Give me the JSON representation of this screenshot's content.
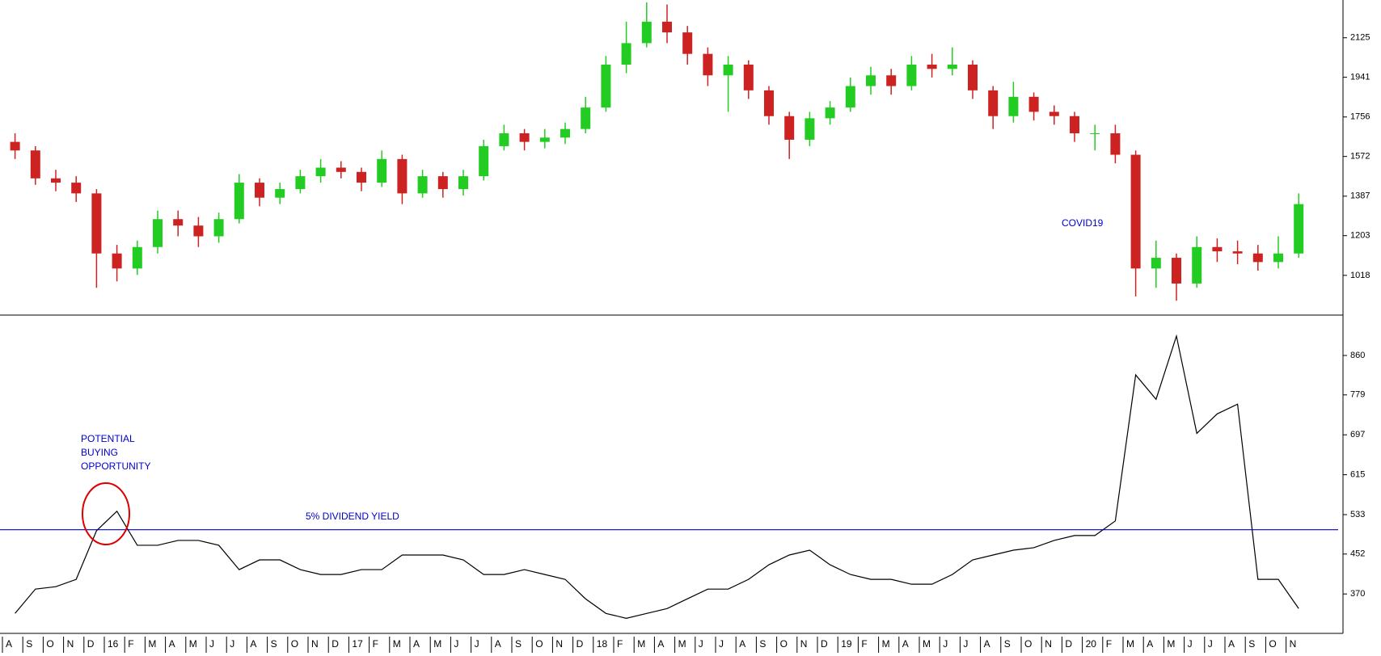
{
  "chart_data": [
    {
      "type": "candlestick",
      "categories": [
        "A",
        "S",
        "O",
        "N",
        "D",
        "16",
        "F",
        "M",
        "A",
        "M",
        "J",
        "J",
        "A",
        "S",
        "O",
        "N",
        "D",
        "17",
        "F",
        "M",
        "A",
        "M",
        "J",
        "J",
        "A",
        "S",
        "O",
        "N",
        "D",
        "18",
        "F",
        "M",
        "A",
        "M",
        "J",
        "J",
        "A",
        "S",
        "O",
        "N",
        "D",
        "19",
        "F",
        "M",
        "A",
        "M",
        "J",
        "J",
        "A",
        "S",
        "O",
        "N",
        "D",
        "20",
        "F",
        "M",
        "A",
        "M",
        "J",
        "J",
        "A",
        "S",
        "O",
        "N"
      ],
      "open": [
        1640,
        1600,
        1470,
        1450,
        1400,
        1120,
        1050,
        1150,
        1280,
        1250,
        1200,
        1280,
        1450,
        1380,
        1420,
        1480,
        1520,
        1500,
        1450,
        1560,
        1400,
        1480,
        1420,
        1480,
        1620,
        1680,
        1640,
        1660,
        1700,
        1800,
        2000,
        2100,
        2200,
        2150,
        2050,
        1950,
        2000,
        1880,
        1760,
        1650,
        1750,
        1800,
        1900,
        1950,
        1900,
        2000,
        1980,
        2000,
        1880,
        1760,
        1850,
        1780,
        1760,
        1680,
        1680,
        1580,
        1050,
        1100,
        980,
        1150,
        1130,
        1120,
        1080,
        1120
      ],
      "high": [
        1680,
        1620,
        1510,
        1480,
        1420,
        1160,
        1180,
        1320,
        1320,
        1290,
        1310,
        1490,
        1470,
        1450,
        1510,
        1560,
        1550,
        1520,
        1600,
        1580,
        1510,
        1500,
        1510,
        1650,
        1720,
        1700,
        1700,
        1730,
        1850,
        2040,
        2200,
        2290,
        2280,
        2180,
        2080,
        2040,
        2020,
        1900,
        1780,
        1780,
        1830,
        1940,
        1990,
        1980,
        2040,
        2050,
        2080,
        2020,
        1900,
        1920,
        1870,
        1810,
        1780,
        1720,
        1720,
        1600,
        1180,
        1120,
        1200,
        1190,
        1180,
        1160,
        1200,
        1400
      ],
      "low": [
        1560,
        1440,
        1410,
        1360,
        960,
        990,
        1020,
        1120,
        1200,
        1150,
        1170,
        1260,
        1340,
        1350,
        1400,
        1450,
        1470,
        1410,
        1430,
        1350,
        1380,
        1380,
        1390,
        1460,
        1600,
        1600,
        1610,
        1630,
        1680,
        1780,
        1960,
        2080,
        2100,
        2000,
        1900,
        1780,
        1840,
        1720,
        1560,
        1620,
        1720,
        1780,
        1860,
        1860,
        1880,
        1940,
        1950,
        1840,
        1700,
        1730,
        1740,
        1720,
        1640,
        1600,
        1540,
        920,
        960,
        900,
        960,
        1080,
        1070,
        1040,
        1050,
        1100
      ],
      "close": [
        1600,
        1470,
        1450,
        1400,
        1120,
        1050,
        1150,
        1280,
        1250,
        1200,
        1280,
        1450,
        1380,
        1420,
        1480,
        1520,
        1500,
        1450,
        1560,
        1400,
        1480,
        1420,
        1480,
        1620,
        1680,
        1640,
        1660,
        1700,
        1800,
        2000,
        2100,
        2200,
        2150,
        2050,
        1950,
        2000,
        1880,
        1760,
        1650,
        1750,
        1800,
        1900,
        1950,
        1900,
        2000,
        1980,
        2000,
        1880,
        1760,
        1850,
        1780,
        1760,
        1680,
        1680,
        1580,
        1050,
        1100,
        980,
        1150,
        1130,
        1120,
        1080,
        1120,
        1350
      ],
      "up_color": "#22cc22",
      "down_color": "#cc2222",
      "ylim": [
        833,
        2301
      ],
      "yticks": [
        1018,
        1203,
        1387,
        1572,
        1756,
        1941,
        2125
      ],
      "annotation": "COVID19"
    },
    {
      "type": "line",
      "values": [
        330,
        380,
        385,
        400,
        500,
        540,
        470,
        470,
        480,
        480,
        470,
        420,
        440,
        440,
        420,
        410,
        410,
        420,
        420,
        450,
        450,
        450,
        440,
        410,
        410,
        420,
        410,
        400,
        360,
        330,
        320,
        330,
        340,
        360,
        380,
        380,
        400,
        430,
        450,
        460,
        430,
        410,
        400,
        400,
        390,
        390,
        410,
        440,
        450,
        460,
        465,
        480,
        490,
        490,
        520,
        820,
        770,
        900,
        700,
        740,
        760,
        400,
        400,
        340
      ],
      "color": "#000000",
      "ylim": [
        289,
        943
      ],
      "yticks": [
        370,
        452,
        533,
        615,
        697,
        779,
        860
      ],
      "reference_line": {
        "value": 502,
        "label": "5% DIVIDEND YIELD",
        "color": "#0000cc"
      },
      "annotation_lines": [
        "POTENTIAL",
        "BUYING",
        "OPPORTUNITY"
      ]
    }
  ]
}
